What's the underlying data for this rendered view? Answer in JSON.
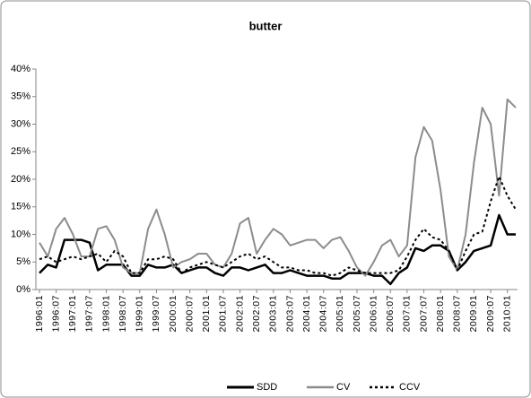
{
  "chart_data": {
    "type": "line",
    "title": "butter",
    "categories": [
      "1996:01",
      null,
      "1996:07",
      null,
      "1997:01",
      null,
      "1997:07",
      null,
      "1998:01",
      null,
      "1998:07",
      null,
      "1999:01",
      null,
      "1999:07",
      null,
      "2000:01",
      null,
      "2000:07",
      null,
      "2001:01",
      null,
      "2001:07",
      null,
      "2002:01",
      null,
      "2002:07",
      null,
      "2003:01",
      null,
      "2003:07",
      null,
      "2004:01",
      null,
      "2004:07",
      null,
      "2005:01",
      null,
      "2005:07",
      null,
      "2006:01",
      null,
      "2006:07",
      null,
      "2007:01",
      null,
      "2007:07",
      null,
      "2008:01",
      null,
      "2008:07",
      null,
      "2009:01",
      null,
      "2009:07",
      null,
      "2010:01",
      null
    ],
    "series": [
      {
        "name": "SDD",
        "color": "#000000",
        "dash": false,
        "width": 2.5,
        "values": [
          3,
          4.5,
          4,
          9,
          9,
          9,
          8.5,
          3.5,
          4.5,
          4.5,
          4.5,
          2.5,
          2.5,
          4.5,
          4,
          4,
          4.5,
          3,
          3.5,
          4,
          4,
          3,
          2.5,
          4,
          4,
          3.5,
          4,
          4.5,
          3,
          3,
          3.5,
          3,
          2.5,
          2.5,
          2.5,
          2,
          2,
          3,
          3,
          3,
          2.5,
          2.5,
          1,
          3,
          4,
          7.5,
          7,
          8,
          8,
          7,
          3.5,
          5,
          7,
          7.5,
          8,
          13.5,
          10,
          10
        ]
      },
      {
        "name": "CV",
        "color": "#8c8c8c",
        "dash": false,
        "width": 2,
        "values": [
          8.5,
          6,
          11,
          13,
          10,
          6,
          6,
          11,
          11.5,
          9,
          4,
          3,
          3,
          11,
          14.5,
          10,
          4,
          5,
          5.5,
          6.5,
          6.5,
          4.5,
          4,
          6.5,
          12,
          13,
          6.5,
          9,
          11,
          10,
          8,
          8.5,
          9,
          9,
          7.5,
          9,
          9.5,
          7,
          4,
          2.5,
          5,
          8,
          9,
          6,
          8,
          24,
          29.5,
          27,
          18,
          6,
          3.5,
          10,
          23,
          33,
          30,
          17,
          34.5,
          33
        ]
      },
      {
        "name": "CCV",
        "color": "#000000",
        "dash": true,
        "width": 2,
        "values": [
          5.5,
          6,
          5,
          5.5,
          6,
          5.5,
          6,
          6.5,
          5,
          7,
          6,
          3,
          3,
          5.5,
          5.5,
          6,
          5.5,
          3,
          4,
          4.5,
          5,
          4.5,
          4,
          5,
          6,
          6.5,
          5.5,
          6,
          5,
          4,
          4,
          3.5,
          3.5,
          3,
          3,
          2.5,
          3,
          4,
          3.5,
          3,
          3,
          3,
          3,
          3.5,
          6,
          9,
          11,
          9.5,
          9,
          7,
          3.5,
          7,
          10,
          10.5,
          16,
          20.5,
          17,
          14.5
        ]
      }
    ],
    "ylim": [
      0,
      40
    ],
    "yticks": [
      {
        "value": 0,
        "label": "0%"
      },
      {
        "value": 5,
        "label": "5%"
      },
      {
        "value": 10,
        "label": "10%"
      },
      {
        "value": 15,
        "label": "15%"
      },
      {
        "value": 20,
        "label": "20%"
      },
      {
        "value": 25,
        "label": "25%"
      },
      {
        "value": 30,
        "label": "30%"
      },
      {
        "value": 35,
        "label": "35%"
      },
      {
        "value": 40,
        "label": "40%"
      }
    ],
    "grid": false,
    "legend": "bottom"
  }
}
